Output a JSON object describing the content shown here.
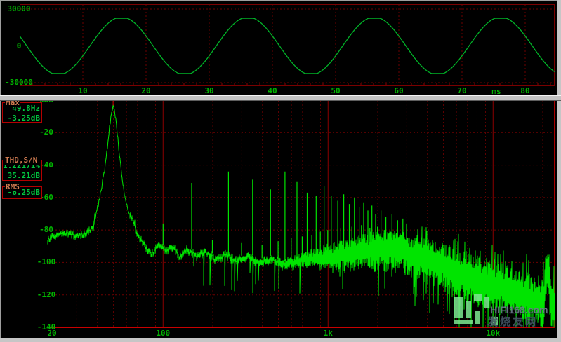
{
  "window": {
    "name": "audio-analyzer-window"
  },
  "measurements": {
    "max": {
      "label": "Max",
      "freq": "49.8Hz",
      "level": "-3.25dB"
    },
    "thd_sn": {
      "label": "THD,S/N",
      "thd": "1.22171%",
      "sn": "35.21dB"
    },
    "rms": {
      "label": "RMS",
      "level": "-6.25dB"
    }
  },
  "watermark": {
    "line1": "HIFI168.com",
    "line2": "发烧友网"
  },
  "colors": {
    "background": "#000000",
    "trace_green": "#00b428",
    "spectrum_green": "#00e400",
    "label_green": "#00b400",
    "value_green": "#00c840",
    "grid_red": "#6e0000",
    "grid_red_bright": "#8c0000",
    "border_red_top_panel": "#7a0000",
    "border_red_bottom_panel": "#aa0000",
    "axis_red_bright": "#c80000",
    "cursor_red": "#d00000",
    "meas_label_orange": "#ce7a50",
    "frame_gray": "#c6c6c6"
  },
  "chart_data": [
    {
      "type": "line",
      "name": "time-domain-waveform",
      "x_unit": "ms",
      "xlim": [
        0,
        84.7
      ],
      "x_ticks": [
        10,
        20,
        30,
        40,
        50,
        60,
        70,
        80
      ],
      "ylim": [
        -30000,
        30000
      ],
      "y_ticks": [
        30000,
        0,
        -30000
      ],
      "grid": "dashed-dark-red",
      "signal": {
        "shape": "sine-clipped",
        "frequency_hz": 50,
        "period_ms": 20,
        "amplitude": 23500,
        "clip_level": 22500,
        "phase_rad": 2.79,
        "peak_times_ms": [
          16,
          36,
          56,
          76
        ]
      }
    },
    {
      "type": "line",
      "name": "fft-spectrum",
      "x_scale": "log",
      "xlim_hz": [
        20,
        24000
      ],
      "x_ticks": [
        {
          "f": 20,
          "label": "20"
        },
        {
          "f": 100,
          "label": "100"
        },
        {
          "f": 1000,
          "label": "1k"
        },
        {
          "f": 10000,
          "label": "10k"
        }
      ],
      "ylim_db": [
        -140,
        0
      ],
      "y_ticks": [
        {
          "db": 0,
          "label": "0dB"
        },
        {
          "db": -20,
          "label": "-20"
        },
        {
          "db": -40,
          "label": "-40"
        },
        {
          "db": -60,
          "label": "-60"
        },
        {
          "db": -80,
          "label": "-80"
        },
        {
          "db": -100,
          "label": "-100"
        },
        {
          "db": -120,
          "label": "-120"
        },
        {
          "db": -140,
          "label": "-140"
        }
      ],
      "fundamental": {
        "freq_hz": 49.8,
        "level_db": -3.25
      },
      "peak_skirt_db": [
        [
          38,
          -75
        ],
        [
          41,
          -62
        ],
        [
          44,
          -45
        ],
        [
          46,
          -28
        ],
        [
          48,
          -12
        ],
        [
          49.8,
          -3.25
        ],
        [
          51.5,
          -10
        ],
        [
          53,
          -22
        ],
        [
          55,
          -38
        ],
        [
          57,
          -52
        ],
        [
          60,
          -65
        ],
        [
          64,
          -72
        ],
        [
          68,
          -77
        ]
      ],
      "noise_floor_db": [
        [
          20,
          -86
        ],
        [
          23,
          -83
        ],
        [
          27,
          -82
        ],
        [
          31,
          -84
        ],
        [
          36,
          -80
        ],
        [
          42,
          -78
        ],
        [
          58,
          -78
        ],
        [
          63,
          -77
        ],
        [
          68,
          -80
        ],
        [
          75,
          -88
        ],
        [
          85,
          -95
        ],
        [
          95,
          -89
        ],
        [
          105,
          -93
        ],
        [
          115,
          -90
        ],
        [
          125,
          -96
        ],
        [
          140,
          -92
        ],
        [
          160,
          -96
        ],
        [
          180,
          -93
        ],
        [
          210,
          -98
        ],
        [
          240,
          -95
        ],
        [
          280,
          -99
        ],
        [
          330,
          -96
        ],
        [
          380,
          -100
        ],
        [
          450,
          -98
        ],
        [
          550,
          -101
        ],
        [
          700,
          -99
        ],
        [
          900,
          -97
        ],
        [
          1200,
          -95
        ],
        [
          1600,
          -93
        ],
        [
          2000,
          -92
        ],
        [
          2600,
          -92
        ],
        [
          3200,
          -95
        ],
        [
          4000,
          -98
        ],
        [
          5000,
          -102
        ],
        [
          6500,
          -106
        ],
        [
          8000,
          -110
        ],
        [
          10000,
          -113
        ],
        [
          13000,
          -117
        ],
        [
          16000,
          -121
        ],
        [
          20000,
          -124
        ],
        [
          24000,
          -126
        ]
      ],
      "band_halfwidth_db": [
        [
          20,
          1
        ],
        [
          400,
          1.5
        ],
        [
          700,
          3
        ],
        [
          1000,
          6
        ],
        [
          1500,
          8
        ],
        [
          2000,
          9
        ],
        [
          3000,
          10
        ],
        [
          5000,
          11
        ],
        [
          8000,
          12
        ],
        [
          24000,
          12
        ]
      ],
      "odd_harmonics_db": [
        [
          149,
          -51
        ],
        [
          249,
          -44
        ],
        [
          349,
          -49
        ],
        [
          448,
          -55
        ],
        [
          548,
          -44
        ],
        [
          648,
          -50
        ],
        [
          747,
          -57
        ],
        [
          847,
          -59
        ],
        [
          946,
          -53
        ],
        [
          1046,
          -59
        ],
        [
          1145,
          -62
        ],
        [
          1245,
          -58
        ],
        [
          1345,
          -64
        ],
        [
          1444,
          -60
        ],
        [
          1544,
          -66
        ],
        [
          1644,
          -63
        ],
        [
          1743,
          -68
        ],
        [
          1843,
          -65
        ],
        [
          1943,
          -70
        ],
        [
          2092,
          -68
        ],
        [
          2241,
          -72
        ],
        [
          2440,
          -70
        ],
        [
          2640,
          -74
        ],
        [
          2839,
          -73
        ],
        [
          2989,
          -76
        ]
      ],
      "even_harmonics_db": [
        [
          100,
          -76
        ],
        [
          199,
          -86
        ],
        [
          299,
          -88
        ],
        [
          398,
          -89
        ],
        [
          498,
          -87
        ],
        [
          598,
          -85
        ],
        [
          697,
          -84
        ],
        [
          797,
          -83
        ],
        [
          897,
          -81
        ],
        [
          996,
          -80
        ],
        [
          1195,
          -79
        ],
        [
          1395,
          -78
        ],
        [
          1594,
          -77
        ],
        [
          1793,
          -79
        ],
        [
          1992,
          -78
        ],
        [
          2191,
          -80
        ],
        [
          2390,
          -81
        ],
        [
          2590,
          -82
        ],
        [
          2789,
          -83
        ]
      ],
      "hf_tone": {
        "freq_hz": 21300,
        "level_db": -104
      }
    }
  ]
}
